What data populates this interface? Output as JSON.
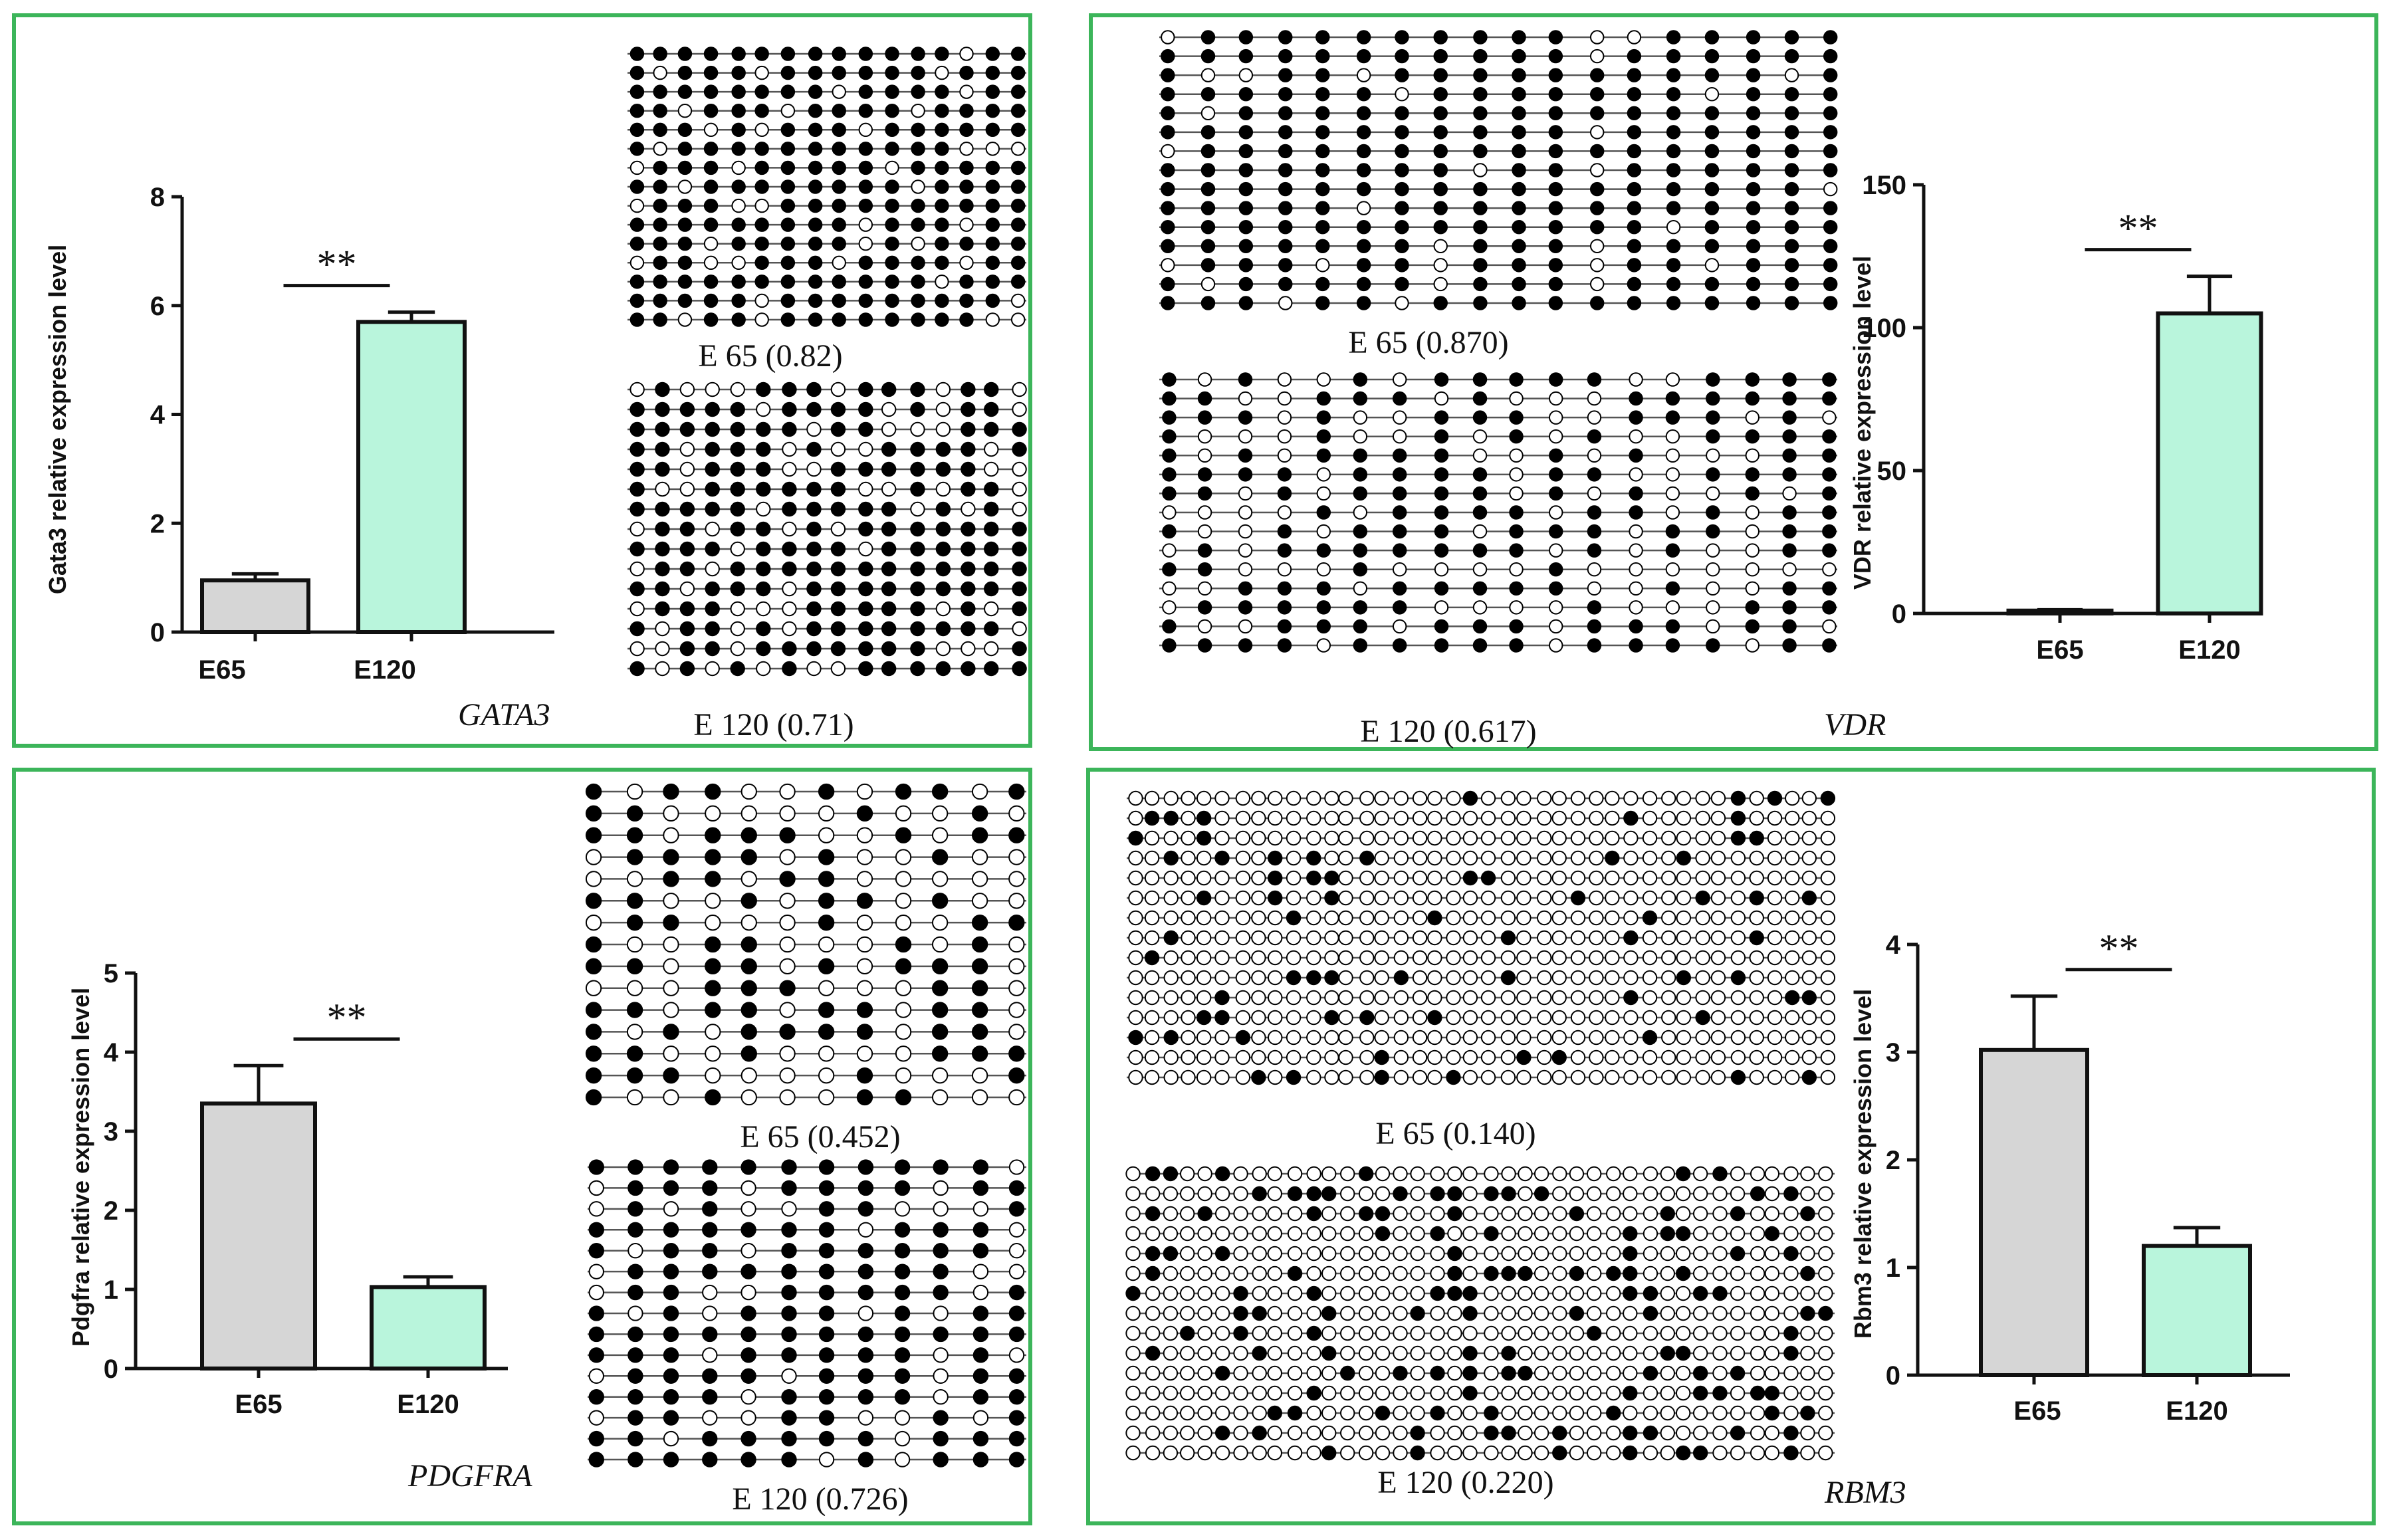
{
  "colors": {
    "border": "#3cb55a",
    "e65_bar": "#d6d6d6",
    "e120_bar": "#b9f5dc",
    "ink": "#111111"
  },
  "chart_data": [
    {
      "type": "bar",
      "gene": "GATA3",
      "ylabel": "Gata3 relative expression level",
      "categories": [
        "E65",
        "E120"
      ],
      "values": [
        0.95,
        5.7
      ],
      "errors": [
        0.12,
        0.18
      ],
      "ylim": [
        0,
        8
      ],
      "yticks": [
        "0",
        "2",
        "4",
        "6",
        "8"
      ],
      "significance": "**",
      "methylation": [
        {
          "label": "E 65 (0.82)",
          "rows": 15,
          "sites": 16,
          "ratio": 0.82,
          "seed": 11
        },
        {
          "label": "E 120 (0.71)",
          "rows": 15,
          "sites": 16,
          "ratio": 0.71,
          "seed": 23
        }
      ]
    },
    {
      "type": "bar",
      "gene": "VDR",
      "ylabel": "VDR relative expression level",
      "categories": [
        "E65",
        "E120"
      ],
      "values": [
        1.0,
        105
      ],
      "errors": [
        0.3,
        13
      ],
      "ylim": [
        0,
        150
      ],
      "yticks": [
        "0",
        "50",
        "100",
        "150"
      ],
      "significance": "**",
      "methylation": [
        {
          "label": "E 65 (0.870)",
          "rows": 15,
          "sites": 18,
          "ratio": 0.87,
          "seed": 37
        },
        {
          "label": "E 120 (0.617)",
          "rows": 15,
          "sites": 18,
          "ratio": 0.617,
          "seed": 41
        }
      ]
    },
    {
      "type": "bar",
      "gene": "PDGFRA",
      "ylabel": "Pdgfra relative expression level",
      "categories": [
        "E65",
        "E120"
      ],
      "values": [
        3.35,
        1.03
      ],
      "errors": [
        0.48,
        0.13
      ],
      "ylim": [
        0,
        5
      ],
      "yticks": [
        "0",
        "1",
        "2",
        "3",
        "4",
        "5"
      ],
      "significance": "**",
      "methylation": [
        {
          "label": "E 65 (0.452)",
          "rows": 15,
          "sites": 12,
          "ratio": 0.452,
          "seed": 53
        },
        {
          "label": "E 120 (0.726)",
          "rows": 15,
          "sites": 12,
          "ratio": 0.726,
          "seed": 67
        }
      ]
    },
    {
      "type": "bar",
      "gene": "RBM3",
      "ylabel": "Rbm3 relative expression level",
      "categories": [
        "E65",
        "E120"
      ],
      "values": [
        3.02,
        1.2
      ],
      "errors": [
        0.5,
        0.17
      ],
      "ylim": [
        0,
        4
      ],
      "yticks": [
        "0",
        "1",
        "2",
        "3",
        "4"
      ],
      "significance": "**",
      "methylation": [
        {
          "label": "E 65 (0.140)",
          "rows": 15,
          "sites": 40,
          "ratio": 0.14,
          "seed": 79
        },
        {
          "label": "E 120 (0.220)",
          "rows": 15,
          "sites": 40,
          "ratio": 0.22,
          "seed": 83
        }
      ]
    }
  ]
}
